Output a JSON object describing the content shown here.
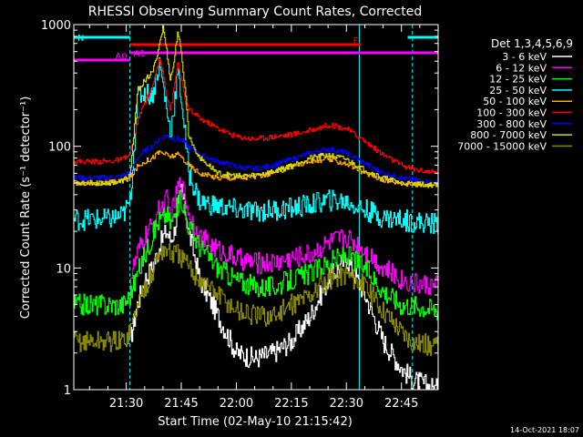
{
  "chart_data": {
    "type": "line",
    "title": "RHESSI Observing Summary Count Rates, Corrected",
    "xlabel": "Start Time (02-May-10 21:15:42)",
    "ylabel": "Corrected Count Rate (s⁻¹ detector⁻¹)",
    "y_scale": "log",
    "ylim": [
      1,
      1000
    ],
    "xlim": [
      "21:15:42",
      "22:55:00"
    ],
    "y_ticks": [
      "1",
      "10",
      "100",
      "1000"
    ],
    "x_ticks": [
      "21:30",
      "21:45",
      "22:00",
      "22:15",
      "22:30",
      "22:45"
    ],
    "legend_title": "Det 1,3,4,5,6,9",
    "legend_position": "right",
    "footer_date": "14-Oct-2021 18:07",
    "state_markers": [
      {
        "label": "N",
        "color": "#00ffff",
        "segments": [
          [
            "21:15:42",
            "21:31:00"
          ],
          [
            "22:46:40",
            "22:55:00"
          ]
        ]
      },
      {
        "label": "F",
        "color": "#ff0000",
        "segments": [
          [
            "21:31:00",
            "22:34:00"
          ]
        ]
      },
      {
        "label": "A0",
        "color": "#ff00ff",
        "segments": [
          [
            "21:15:42",
            "21:31:00"
          ]
        ]
      },
      {
        "label": "A1",
        "color": "#ff00ff",
        "segments": [
          [
            "21:31:00",
            "22:55:00"
          ]
        ]
      }
    ],
    "vlines": [
      {
        "time": "21:15:42",
        "color": "#00ffff",
        "style": "solid"
      },
      {
        "time": "21:31:00",
        "color": "#00ffff",
        "style": "dashed"
      },
      {
        "time": "22:33:30",
        "color": "#00ffff",
        "style": "solid"
      },
      {
        "time": "22:48:00",
        "color": "#00ffff",
        "style": "dashed"
      }
    ],
    "x": [
      "21:15:42",
      "21:25:00",
      "21:29:00",
      "21:31:00",
      "21:33:00",
      "21:35:00",
      "21:37:00",
      "21:38:00",
      "21:39:00",
      "21:40:00",
      "21:41:00",
      "21:42:00",
      "21:43:00",
      "21:44:00",
      "21:45:00",
      "21:46:00",
      "21:47:00",
      "21:50:00",
      "21:55:00",
      "22:00:00",
      "22:05:00",
      "22:10:00",
      "22:15:00",
      "22:20:00",
      "22:25:00",
      "22:30:00",
      "22:35:00",
      "22:40:00",
      "22:45:00",
      "22:48:00",
      "22:55:00"
    ],
    "series": [
      {
        "name": "3 - 6 keV",
        "color": "#ffffff",
        "values": [
          null,
          null,
          null,
          2.5,
          5,
          8,
          10,
          12,
          15,
          18,
          20,
          17,
          20,
          30,
          45,
          30,
          20,
          8,
          4,
          2,
          1.8,
          2,
          2.5,
          4,
          8,
          12,
          6,
          2.5,
          1.5,
          1.2,
          1
        ]
      },
      {
        "name": "6 - 12 keV",
        "color": "#ff00ff",
        "values": [
          null,
          null,
          null,
          8,
          13,
          18,
          22,
          27,
          30,
          32,
          36,
          27,
          33,
          45,
          50,
          38,
          28,
          18,
          14,
          12,
          11,
          11,
          12,
          13,
          16,
          18,
          14,
          10,
          8,
          7.5,
          7
        ]
      },
      {
        "name": "12 - 25 keV",
        "color": "#00ff00",
        "values": [
          5,
          5,
          5,
          6,
          9,
          13,
          18,
          22,
          25,
          26,
          28,
          23,
          26,
          33,
          38,
          28,
          22,
          15,
          10,
          8,
          7,
          7,
          8,
          9,
          11,
          13,
          10,
          6.5,
          5,
          5,
          4.5
        ]
      },
      {
        "name": "25 - 50 keV",
        "color": "#00ffff",
        "values": [
          25,
          25,
          27,
          35,
          250,
          280,
          260,
          350,
          480,
          320,
          200,
          130,
          220,
          400,
          250,
          120,
          60,
          35,
          32,
          30,
          29,
          30,
          31,
          33,
          36,
          35,
          30,
          26,
          25,
          24,
          23
        ]
      },
      {
        "name": "50 - 100 keV",
        "color": "#ffaa00",
        "values": [
          50,
          50,
          52,
          55,
          68,
          75,
          80,
          85,
          90,
          88,
          85,
          82,
          84,
          85,
          82,
          75,
          70,
          60,
          55,
          55,
          56,
          60,
          68,
          75,
          78,
          72,
          60,
          53,
          50,
          49,
          48
        ]
      },
      {
        "name": "100 - 300 keV",
        "color": "#ff0000",
        "values": [
          75,
          75,
          78,
          85,
          160,
          230,
          300,
          380,
          520,
          420,
          260,
          200,
          300,
          500,
          360,
          240,
          200,
          170,
          140,
          120,
          115,
          120,
          125,
          135,
          150,
          140,
          110,
          85,
          70,
          65,
          60
        ]
      },
      {
        "name": "300 - 800 keV",
        "color": "#0000ff",
        "values": [
          55,
          55,
          57,
          62,
          80,
          92,
          100,
          108,
          115,
          120,
          122,
          118,
          115,
          116,
          112,
          105,
          98,
          85,
          75,
          68,
          65,
          70,
          78,
          88,
          95,
          88,
          72,
          60,
          55,
          53,
          50
        ]
      },
      {
        "name": "800 - 7000 keV",
        "color": "#d8d800",
        "values": [
          50,
          50,
          52,
          58,
          280,
          350,
          400,
          500,
          700,
          950,
          600,
          350,
          500,
          900,
          550,
          300,
          120,
          80,
          60,
          57,
          58,
          62,
          70,
          80,
          85,
          78,
          64,
          55,
          50,
          49,
          48
        ]
      },
      {
        "name": "7000 - 15000 keV",
        "color": "#888800",
        "values": [
          2.5,
          2.5,
          2.5,
          3,
          5,
          7,
          9,
          11,
          13,
          14,
          14,
          13,
          13,
          13,
          12,
          11,
          10,
          8,
          6,
          4.5,
          4,
          4,
          5,
          6,
          8,
          9,
          7,
          4.5,
          3,
          2.5,
          2.2
        ]
      }
    ]
  }
}
